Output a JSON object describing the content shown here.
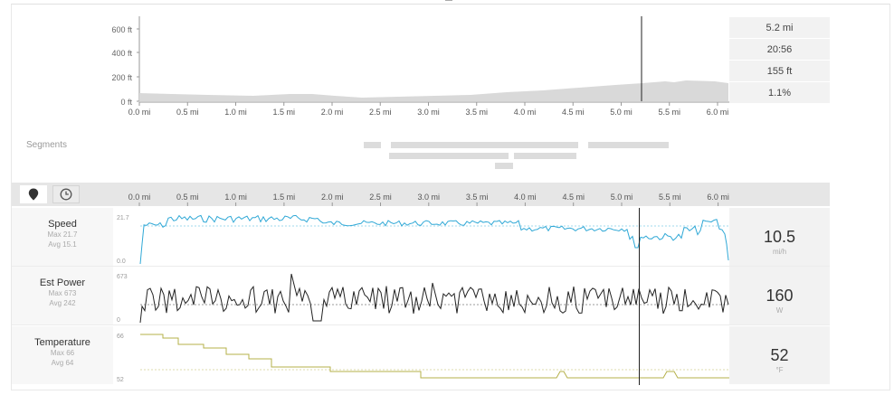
{
  "elevation": {
    "y_ticks": [
      "600 ft",
      "400 ft",
      "200 ft",
      "0 ft"
    ],
    "x_ticks": [
      "0.0 mi",
      "0.5 mi",
      "1.0 mi",
      "1.5 mi",
      "2.0 mi",
      "2.5 mi",
      "3.0 mi",
      "3.5 mi",
      "4.0 mi",
      "4.5 mi",
      "5.0 mi",
      "5.5 mi",
      "6.0 mi"
    ],
    "stats": [
      "5.2 mi",
      "20:56",
      "155 ft",
      "1.1%"
    ],
    "fill_color": "#d9d9d9"
  },
  "segments": {
    "label": "Segments"
  },
  "toolbar": {
    "distance_icon": "map-pin-icon",
    "time_icon": "clock-icon",
    "x_ticks": [
      "0.0 mi",
      "0.5 mi",
      "1.0 mi",
      "1.5 mi",
      "2.0 mi",
      "2.5 mi",
      "3.0 mi",
      "3.5 mi",
      "4.0 mi",
      "4.5 mi",
      "5.0 mi",
      "5.5 mi",
      "6.0 mi"
    ]
  },
  "metrics": [
    {
      "name": "Speed",
      "max": "Max 21.7",
      "avg": "Avg 15.1",
      "y_top": "21.7",
      "y_bottom": "0.0",
      "value": "10.5",
      "unit": "mi/h",
      "color": "#2fa8d6"
    },
    {
      "name": "Est Power",
      "max": "Max 673",
      "avg": "Avg 242",
      "y_top": "673",
      "y_bottom": "0",
      "value": "160",
      "unit": "W",
      "color": "#222222"
    },
    {
      "name": "Temperature",
      "max": "Max 66",
      "avg": "Avg 64",
      "y_top": "66",
      "y_bottom": "52",
      "value": "52",
      "unit": "°F",
      "color": "#b5b04a"
    }
  ]
}
